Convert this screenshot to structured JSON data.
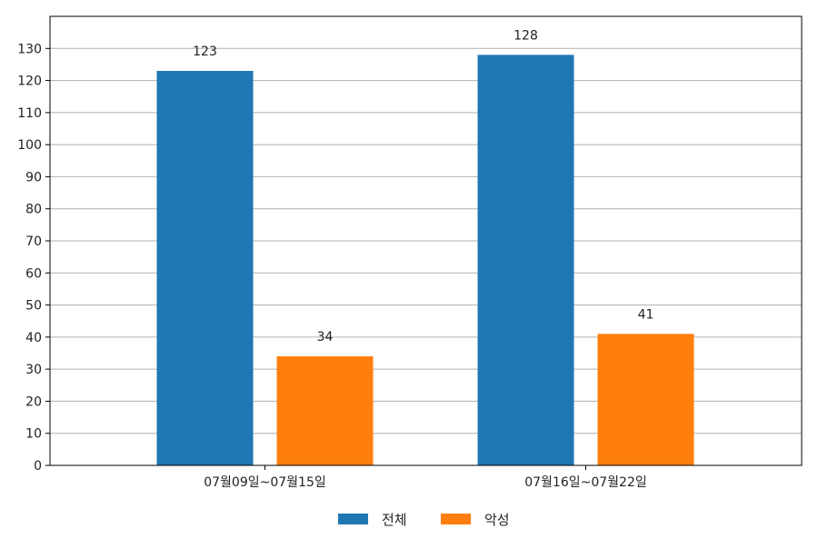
{
  "chart_data": {
    "type": "bar",
    "categories": [
      "07월09일~07월15일",
      "07월16일~07월22일"
    ],
    "series": [
      {
        "name": "전체",
        "values": [
          123,
          128
        ],
        "color": "#1f77b4"
      },
      {
        "name": "악성",
        "values": [
          34,
          41
        ],
        "color": "#ff7f0e"
      }
    ],
    "ylim": [
      0,
      140
    ],
    "yticks": [
      0,
      10,
      20,
      30,
      40,
      50,
      60,
      70,
      80,
      90,
      100,
      110,
      120,
      130
    ],
    "grid": true,
    "grid_axis": "y",
    "legend_position": "bottom-center",
    "data_labels": true
  }
}
